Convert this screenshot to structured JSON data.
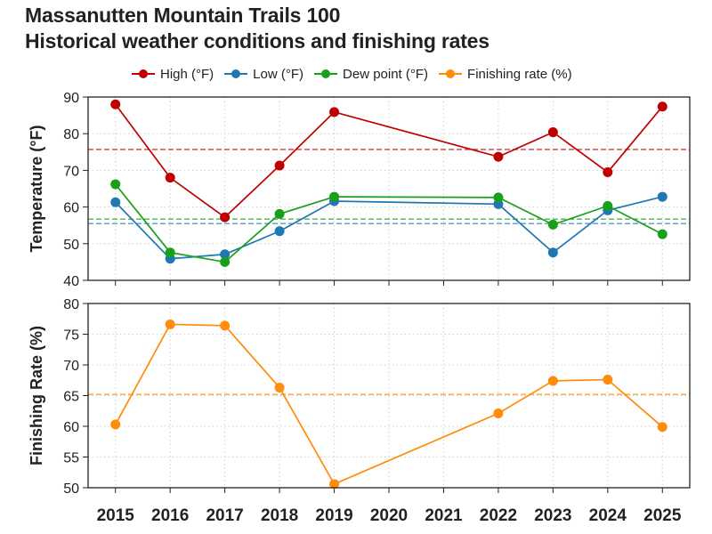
{
  "title": {
    "line1": "Massanutten Mountain Trails 100",
    "line2": "Historical weather conditions and finishing rates"
  },
  "legend": [
    {
      "label": "High (°F)",
      "color": "#c00000"
    },
    {
      "label": "Low (°F)",
      "color": "#1f77b4"
    },
    {
      "label": "Dew point (°F)",
      "color": "#18a018"
    },
    {
      "label": "Finishing rate (%)",
      "color": "#ff8c0a"
    }
  ],
  "chart_data": [
    {
      "type": "line",
      "panel": "top",
      "ylabel": "Temperature (°F)",
      "ylim": [
        40,
        90
      ],
      "yticks": [
        40,
        50,
        60,
        70,
        80,
        90
      ],
      "grid": true,
      "x_ticks": [
        "2015",
        "2016",
        "2017",
        "2018",
        "2019",
        "2020",
        "2021",
        "2022",
        "2023",
        "2024",
        "2025"
      ],
      "series": [
        {
          "name": "High (°F)",
          "color": "#c00000",
          "x": [
            2015,
            2016,
            2017,
            2018,
            2019,
            2022,
            2023,
            2024,
            2025
          ],
          "values": [
            88,
            68,
            57.2,
            71.3,
            85.9,
            73.7,
            80.4,
            69.5,
            87.4
          ],
          "mean": 75.7
        },
        {
          "name": "Low (°F)",
          "color": "#1f77b4",
          "x": [
            2015,
            2016,
            2017,
            2018,
            2019,
            2022,
            2023,
            2024,
            2025
          ],
          "values": [
            61.3,
            45.9,
            47.1,
            53.4,
            61.6,
            60.8,
            47.6,
            59.1,
            62.8
          ],
          "mean": 55.5
        },
        {
          "name": "Dew point (°F)",
          "color": "#18a018",
          "x": [
            2015,
            2016,
            2017,
            2018,
            2019,
            2022,
            2023,
            2024,
            2025
          ],
          "values": [
            66.2,
            47.6,
            45,
            58.1,
            62.8,
            62.6,
            55.2,
            60.3,
            52.6
          ],
          "mean": 56.7
        }
      ]
    },
    {
      "type": "line",
      "panel": "bottom",
      "ylabel": "Finishing Rate (%)",
      "ylim": [
        50,
        80
      ],
      "yticks": [
        50,
        55,
        60,
        65,
        70,
        75,
        80
      ],
      "grid": true,
      "x_ticks": [
        "2015",
        "2016",
        "2017",
        "2018",
        "2019",
        "2020",
        "2021",
        "2022",
        "2023",
        "2024",
        "2025"
      ],
      "series": [
        {
          "name": "Finishing rate (%)",
          "color": "#ff8c0a",
          "x": [
            2015,
            2016,
            2017,
            2018,
            2019,
            2022,
            2023,
            2024,
            2025
          ],
          "values": [
            60.3,
            76.6,
            76.4,
            66.3,
            50.6,
            62.1,
            67.4,
            67.6,
            59.9
          ],
          "mean": 65.2
        }
      ]
    }
  ]
}
